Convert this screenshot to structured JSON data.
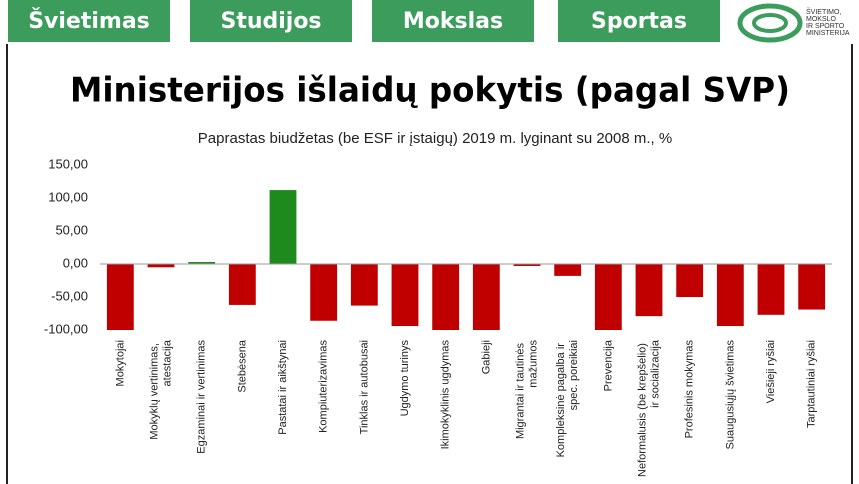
{
  "header": {
    "tabs": [
      "Švietimas",
      "Studijos",
      "Mokslas",
      "Sportas"
    ],
    "logo_lines": [
      "ŠVIETIMO,",
      "MOKSLO",
      "IR SPORTO",
      "MINISTERIJA"
    ]
  },
  "title": "Ministerijos išlaidų pokytis (pagal SVP)",
  "chart_data": {
    "type": "bar",
    "title": "Paprastas biudžetas (be ESF ir įstaigų) 2019 m. lyginant su 2008 m., %",
    "categories": [
      "Mokytojai",
      "Mokyklų vertinimas, atestacija",
      "Egzaminai ir vertinimas",
      "Stebėsena",
      "Pastatai ir aikštynai",
      "Kompiuterizavimas",
      "Tinklas ir autobusai",
      "Ugdymo turinys",
      "Ikimokyklinis ugdymas",
      "Gabieji",
      "Migrantai ir tautinės mažumos",
      "Kompleksinė pagalba ir spec. poreikiai",
      "Prevencija",
      "Neformalusis (be krepšelio) ir socializacija",
      "Profesinis mokymas",
      "Suaugusiųjų švietimas",
      "Viešieji ryšiai",
      "Tarptautiniai ryšiai"
    ],
    "values": [
      -100,
      -5,
      3,
      -62,
      112,
      -86,
      -63,
      -94,
      -100,
      -100,
      -3,
      -18,
      -100,
      -79,
      -50,
      -94,
      -77,
      -69
    ],
    "colors": [
      "#c00000",
      "#c00000",
      "#1e8a1e",
      "#c00000",
      "#1e8a1e",
      "#c00000",
      "#c00000",
      "#c00000",
      "#c00000",
      "#c00000",
      "#c00000",
      "#c00000",
      "#c00000",
      "#c00000",
      "#c00000",
      "#c00000",
      "#c00000",
      "#c00000"
    ],
    "ylim": [
      -100,
      150
    ],
    "yticks": [
      {
        "value": -100,
        "label": "-100,00"
      },
      {
        "value": -50,
        "label": "-50,00"
      },
      {
        "value": 0,
        "label": "0,00"
      },
      {
        "value": 50,
        "label": "50,00"
      },
      {
        "value": 100,
        "label": "100,00"
      },
      {
        "value": 150,
        "label": "150,00"
      }
    ],
    "grid": false
  }
}
